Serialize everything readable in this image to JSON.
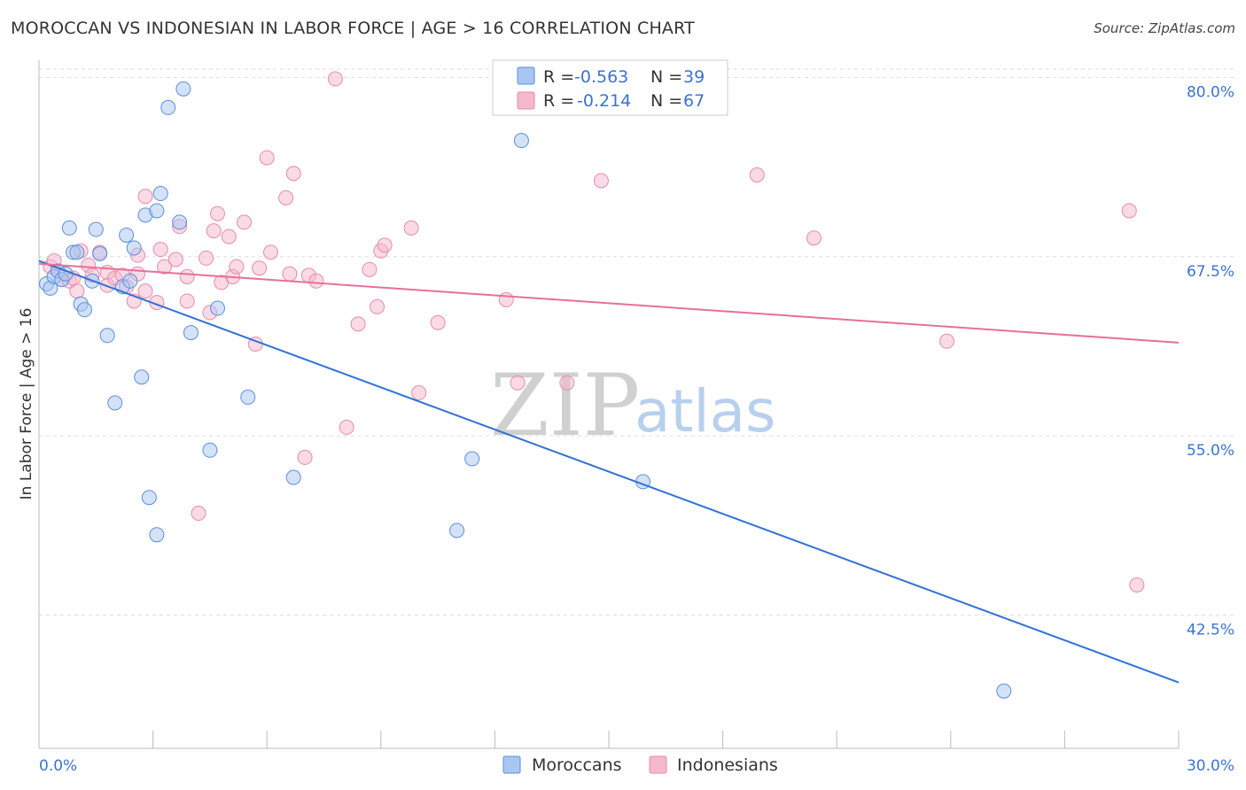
{
  "header": {
    "title": "MOROCCAN VS INDONESIAN IN LABOR FORCE | AGE > 16 CORRELATION CHART",
    "source": "Source: ZipAtlas.com"
  },
  "watermark": {
    "zip": "ZIP",
    "atlas": "atlas"
  },
  "stats_legend": {
    "r_label": "R =",
    "n_label": "N =",
    "rows": [
      {
        "r": "-0.563",
        "n": "39",
        "color": "#a9c6f1"
      },
      {
        "r": "-0.214",
        "n": "67",
        "color": "#f6b8cb"
      }
    ]
  },
  "bottom_legend": [
    {
      "label": "Moroccans",
      "color": "#a9c6f1"
    },
    {
      "label": "Indonesians",
      "color": "#f6b8cb"
    }
  ],
  "colors": {
    "blue_fill": "#a9c6f1",
    "blue_stroke": "#5b8fdc",
    "blue_line": "#2f72d6",
    "pink_fill": "#f6b8cb",
    "pink_stroke": "#e98aa7",
    "pink_line": "#e6709a",
    "tick_text": "#3a73d2",
    "grid": "#dddddd"
  },
  "chart_data": {
    "type": "scatter",
    "title": "MOROCCAN VS INDONESIAN IN LABOR FORCE | AGE > 16 CORRELATION CHART",
    "xlabel": "",
    "ylabel": "In Labor Force | Age > 16",
    "xlim": [
      0,
      30
    ],
    "ylim": [
      33.2,
      81.2
    ],
    "x_tick_labels": [
      "0.0%",
      "30.0%"
    ],
    "y_ticks": [
      42.5,
      55.0,
      67.5,
      80.0
    ],
    "y_tick_labels": [
      "42.5%",
      "55.0%",
      "67.5%",
      "80.0%"
    ],
    "grid": true,
    "legend_position": "top-center",
    "series": [
      {
        "name": "Moroccans",
        "r": -0.563,
        "n": 39,
        "trend": {
          "x": [
            0.0,
            30.0
          ],
          "y": [
            67.2,
            37.8
          ]
        },
        "points": [
          [
            0.2,
            65.6
          ],
          [
            0.3,
            65.3
          ],
          [
            0.4,
            66.1
          ],
          [
            0.5,
            66.5
          ],
          [
            0.6,
            65.9
          ],
          [
            0.7,
            66.3
          ],
          [
            0.8,
            69.5
          ],
          [
            0.9,
            67.8
          ],
          [
            1.0,
            67.8
          ],
          [
            1.1,
            64.2
          ],
          [
            1.2,
            63.8
          ],
          [
            1.4,
            65.8
          ],
          [
            1.5,
            69.4
          ],
          [
            1.6,
            67.7
          ],
          [
            1.8,
            62.0
          ],
          [
            2.0,
            57.3
          ],
          [
            2.2,
            65.4
          ],
          [
            2.3,
            69.0
          ],
          [
            2.4,
            65.8
          ],
          [
            2.5,
            68.1
          ],
          [
            2.7,
            59.1
          ],
          [
            2.8,
            70.4
          ],
          [
            2.9,
            50.7
          ],
          [
            3.1,
            48.1
          ],
          [
            3.1,
            70.7
          ],
          [
            3.2,
            71.9
          ],
          [
            3.4,
            77.9
          ],
          [
            3.7,
            69.9
          ],
          [
            3.8,
            79.2
          ],
          [
            4.0,
            62.2
          ],
          [
            4.5,
            54.0
          ],
          [
            4.7,
            63.9
          ],
          [
            5.5,
            57.7
          ],
          [
            6.7,
            52.1
          ],
          [
            11.0,
            48.4
          ],
          [
            11.4,
            53.4
          ],
          [
            12.7,
            75.6
          ],
          [
            15.9,
            51.8
          ],
          [
            25.4,
            37.2
          ]
        ]
      },
      {
        "name": "Indonesians",
        "r": -0.214,
        "n": 67,
        "trend": {
          "x": [
            0.0,
            30.0
          ],
          "y": [
            67.0,
            61.5
          ]
        },
        "points": [
          [
            0.3,
            66.8
          ],
          [
            0.4,
            67.2
          ],
          [
            0.5,
            66.5
          ],
          [
            0.6,
            65.9
          ],
          [
            0.8,
            65.8
          ],
          [
            1.0,
            65.1
          ],
          [
            1.1,
            67.9
          ],
          [
            1.3,
            66.9
          ],
          [
            1.4,
            66.2
          ],
          [
            1.6,
            67.8
          ],
          [
            1.8,
            66.4
          ],
          [
            1.8,
            65.5
          ],
          [
            2.0,
            66.0
          ],
          [
            2.2,
            66.2
          ],
          [
            2.3,
            65.4
          ],
          [
            2.5,
            64.4
          ],
          [
            2.6,
            67.6
          ],
          [
            2.8,
            71.7
          ],
          [
            2.8,
            65.1
          ],
          [
            3.1,
            64.3
          ],
          [
            3.2,
            68.0
          ],
          [
            3.3,
            66.8
          ],
          [
            3.6,
            67.3
          ],
          [
            3.7,
            69.6
          ],
          [
            3.9,
            64.4
          ],
          [
            3.9,
            66.1
          ],
          [
            4.2,
            49.6
          ],
          [
            4.4,
            67.4
          ],
          [
            4.5,
            63.6
          ],
          [
            4.6,
            69.3
          ],
          [
            4.7,
            70.5
          ],
          [
            4.8,
            65.7
          ],
          [
            5.0,
            68.9
          ],
          [
            5.1,
            66.1
          ],
          [
            5.2,
            66.8
          ],
          [
            5.4,
            69.9
          ],
          [
            5.7,
            61.4
          ],
          [
            5.8,
            66.7
          ],
          [
            6.0,
            74.4
          ],
          [
            6.1,
            67.8
          ],
          [
            6.5,
            71.6
          ],
          [
            6.6,
            66.3
          ],
          [
            6.7,
            73.3
          ],
          [
            7.0,
            53.5
          ],
          [
            7.1,
            66.2
          ],
          [
            7.3,
            65.8
          ],
          [
            7.8,
            79.9
          ],
          [
            8.1,
            55.6
          ],
          [
            8.4,
            62.8
          ],
          [
            8.7,
            66.6
          ],
          [
            8.9,
            64.0
          ],
          [
            9.0,
            67.9
          ],
          [
            9.1,
            68.3
          ],
          [
            9.8,
            69.5
          ],
          [
            10.0,
            58.0
          ],
          [
            10.5,
            62.9
          ],
          [
            12.3,
            64.5
          ],
          [
            12.6,
            58.7
          ],
          [
            13.9,
            58.7
          ],
          [
            14.8,
            72.8
          ],
          [
            18.9,
            73.2
          ],
          [
            20.4,
            68.8
          ],
          [
            23.9,
            61.6
          ],
          [
            28.7,
            70.7
          ],
          [
            28.9,
            44.6
          ],
          [
            0.9,
            66.0
          ],
          [
            2.6,
            66.3
          ]
        ]
      }
    ]
  }
}
